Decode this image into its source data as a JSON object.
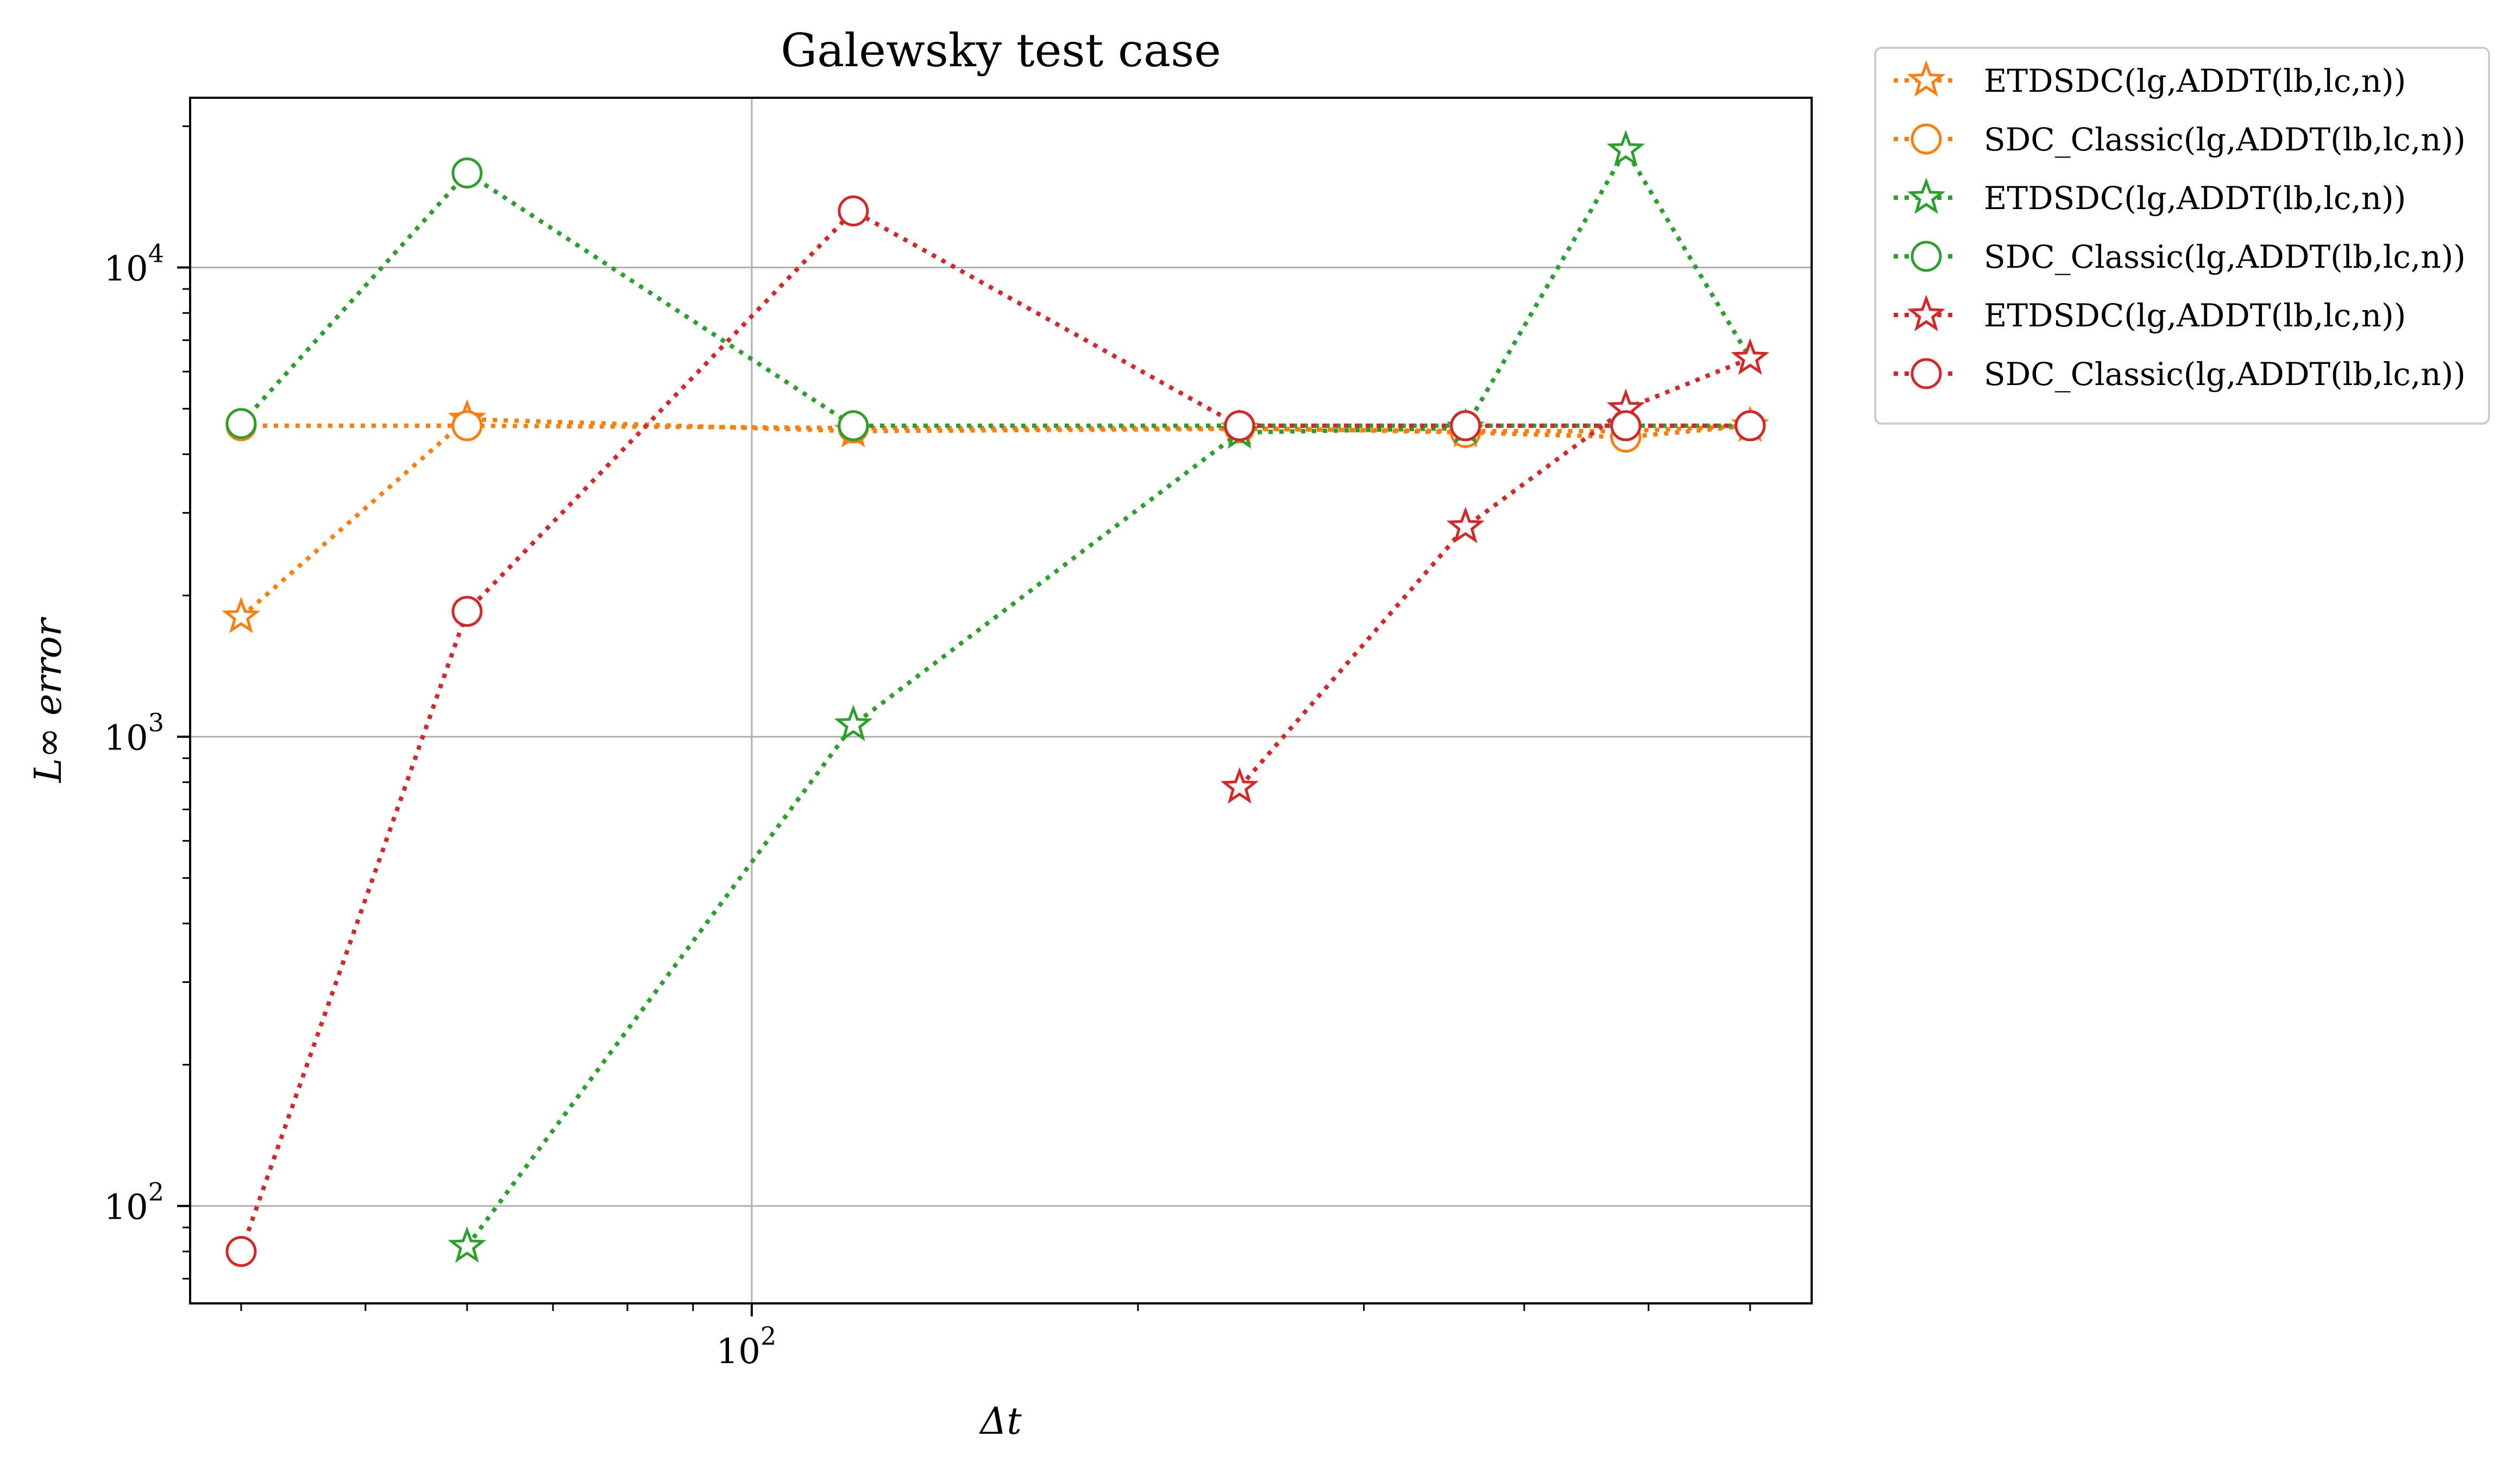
{
  "chart_data": {
    "type": "line",
    "title": "Galewsky test case",
    "xlabel": "Δt",
    "ylabel": "L∞ error",
    "xscale": "log",
    "yscale": "log",
    "xlim": [
      36.5,
      670
    ],
    "ylim": [
      62,
      23000
    ],
    "xticks": [
      {
        "value": 100,
        "base": "10",
        "exp": "2"
      }
    ],
    "yticks": [
      {
        "value": 100,
        "base": "10",
        "exp": "2"
      },
      {
        "value": 1000,
        "base": "10",
        "exp": "3"
      },
      {
        "value": 10000,
        "base": "10",
        "exp": "4"
      }
    ],
    "grid": true,
    "legend_position": "outside-right-top",
    "series": [
      {
        "name": "ETDSDC(lg,ADDT(lb,lc,n))",
        "color": "#ff7f0e",
        "marker": "star",
        "linestyle": "dotted",
        "points": [
          [
            40,
            1800
          ],
          [
            60,
            4750
          ],
          [
            120,
            4480
          ],
          [
            240,
            4530
          ],
          [
            360,
            4480
          ],
          [
            480,
            4480
          ],
          [
            600,
            4600
          ]
        ]
      },
      {
        "name": "SDC_Classic(lg,ADDT(lb,lc,n))",
        "color": "#ff7f0e",
        "marker": "circle",
        "linestyle": "dotted",
        "points": [
          [
            40,
            4600
          ],
          [
            60,
            4600
          ],
          [
            120,
            4550
          ],
          [
            240,
            4550
          ],
          [
            360,
            4450
          ],
          [
            480,
            4350
          ],
          [
            600,
            4600
          ]
        ]
      },
      {
        "name": "ETDSDC(lg,ADDT(lb,lc,n))",
        "color": "#2ca02c",
        "marker": "star",
        "linestyle": "dotted",
        "points": [
          [
            60,
            82
          ],
          [
            120,
            1060
          ],
          [
            240,
            4450
          ],
          [
            360,
            4550
          ],
          [
            480,
            17800
          ],
          [
            600,
            6400
          ]
        ]
      },
      {
        "name": "SDC_Classic(lg,ADDT(lb,lc,n))",
        "color": "#2ca02c",
        "marker": "circle",
        "linestyle": "dotted",
        "points": [
          [
            40,
            4650
          ],
          [
            60,
            15900
          ],
          [
            120,
            4600
          ],
          [
            240,
            4600
          ],
          [
            360,
            4600
          ],
          [
            480,
            4600
          ],
          [
            600,
            4600
          ]
        ]
      },
      {
        "name": "ETDSDC(lg,ADDT(lb,lc,n))",
        "color": "#d62728",
        "marker": "star",
        "linestyle": "dotted",
        "segments": [
          [
            [
              240,
              780
            ],
            [
              360,
              2800
            ],
            [
              480,
              5000
            ],
            [
              600,
              6400
            ]
          ]
        ]
      },
      {
        "name": "SDC_Classic(lg,ADDT(lb,lc,n))",
        "color": "#d62728",
        "marker": "circle",
        "linestyle": "dotted",
        "points": [
          [
            40,
            80
          ],
          [
            60,
            1850
          ],
          [
            120,
            13200
          ],
          [
            240,
            4600
          ],
          [
            360,
            4600
          ],
          [
            480,
            4600
          ],
          [
            600,
            4600
          ]
        ]
      }
    ]
  }
}
